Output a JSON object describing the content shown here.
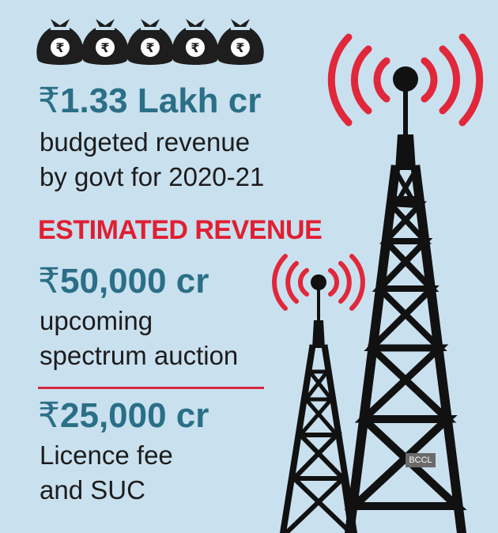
{
  "money_bags": {
    "count": 5,
    "symbol": "₹",
    "color": "#1e1e1e"
  },
  "budget": {
    "symbol": "₹",
    "amount": "1.33 Lakh cr",
    "line1": "budgeted revenue",
    "line2": "by govt for 2020-21"
  },
  "estimated_heading": "ESTIMATED REVENUE",
  "spectrum": {
    "symbol": "₹",
    "amount": "50,000 cr",
    "line1": "upcoming",
    "line2": "spectrum auction"
  },
  "licence": {
    "symbol": "₹",
    "amount": "25,000 cr",
    "line1": "Licence fee",
    "line2": "and SUC"
  },
  "credit": "BCCL",
  "colors": {
    "background": "#c9e0ef",
    "amount_teal": "#2a6f86",
    "heading_red": "#e01f32",
    "signal_red": "#e0283a",
    "tower_black": "#111111",
    "text_dark": "#1c1c1c"
  }
}
